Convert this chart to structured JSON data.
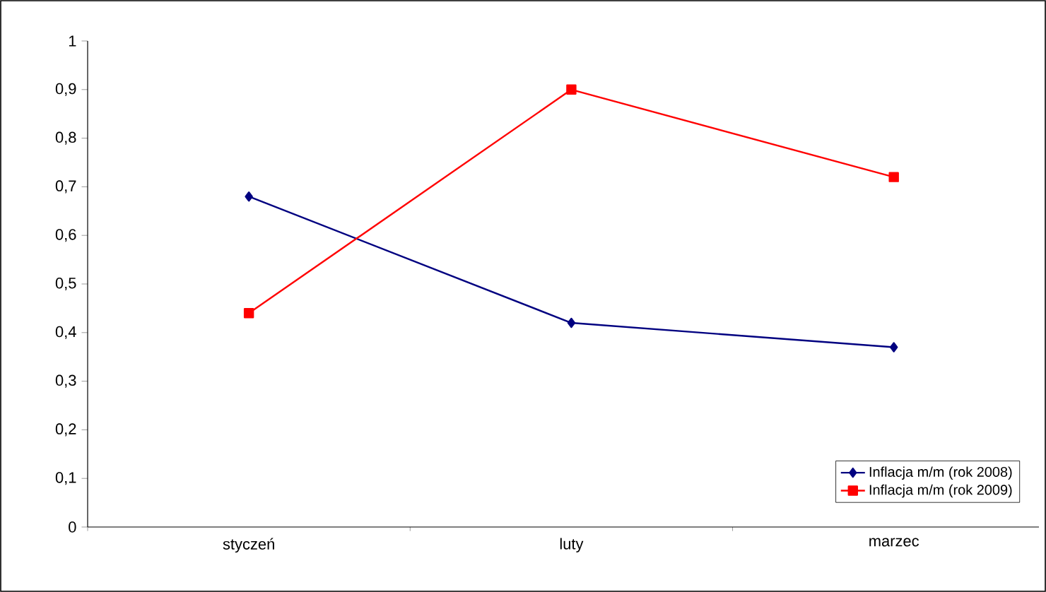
{
  "chart_data": {
    "type": "line",
    "categories": [
      "styczeń",
      "luty",
      "marzec"
    ],
    "series": [
      {
        "name": "Inflacja m/m (rok 2008)",
        "color": "#000080",
        "marker": "diamond",
        "values": [
          0.68,
          0.42,
          0.37
        ]
      },
      {
        "name": "Inflacja m/m (rok 2009)",
        "color": "#ff0000",
        "marker": "square",
        "values": [
          0.44,
          0.9,
          0.72
        ]
      }
    ],
    "ylim": [
      0,
      1
    ],
    "yticks": [
      0,
      {
        "value": 0.1,
        "label": "0,1"
      },
      {
        "value": 0.2,
        "label": "0,2"
      },
      {
        "value": 0.3,
        "label": "0,3"
      },
      {
        "value": 0.4,
        "label": "0,4"
      },
      {
        "value": 0.5,
        "label": "0,5"
      },
      {
        "value": 0.6,
        "label": "0,6"
      },
      {
        "value": 0.7,
        "label": "0,7"
      },
      {
        "value": 0.8,
        "label": "0,8"
      },
      {
        "value": 0.9,
        "label": "0,9"
      },
      1
    ],
    "grid": false,
    "legend": "bottom right",
    "line_style": "solid"
  }
}
